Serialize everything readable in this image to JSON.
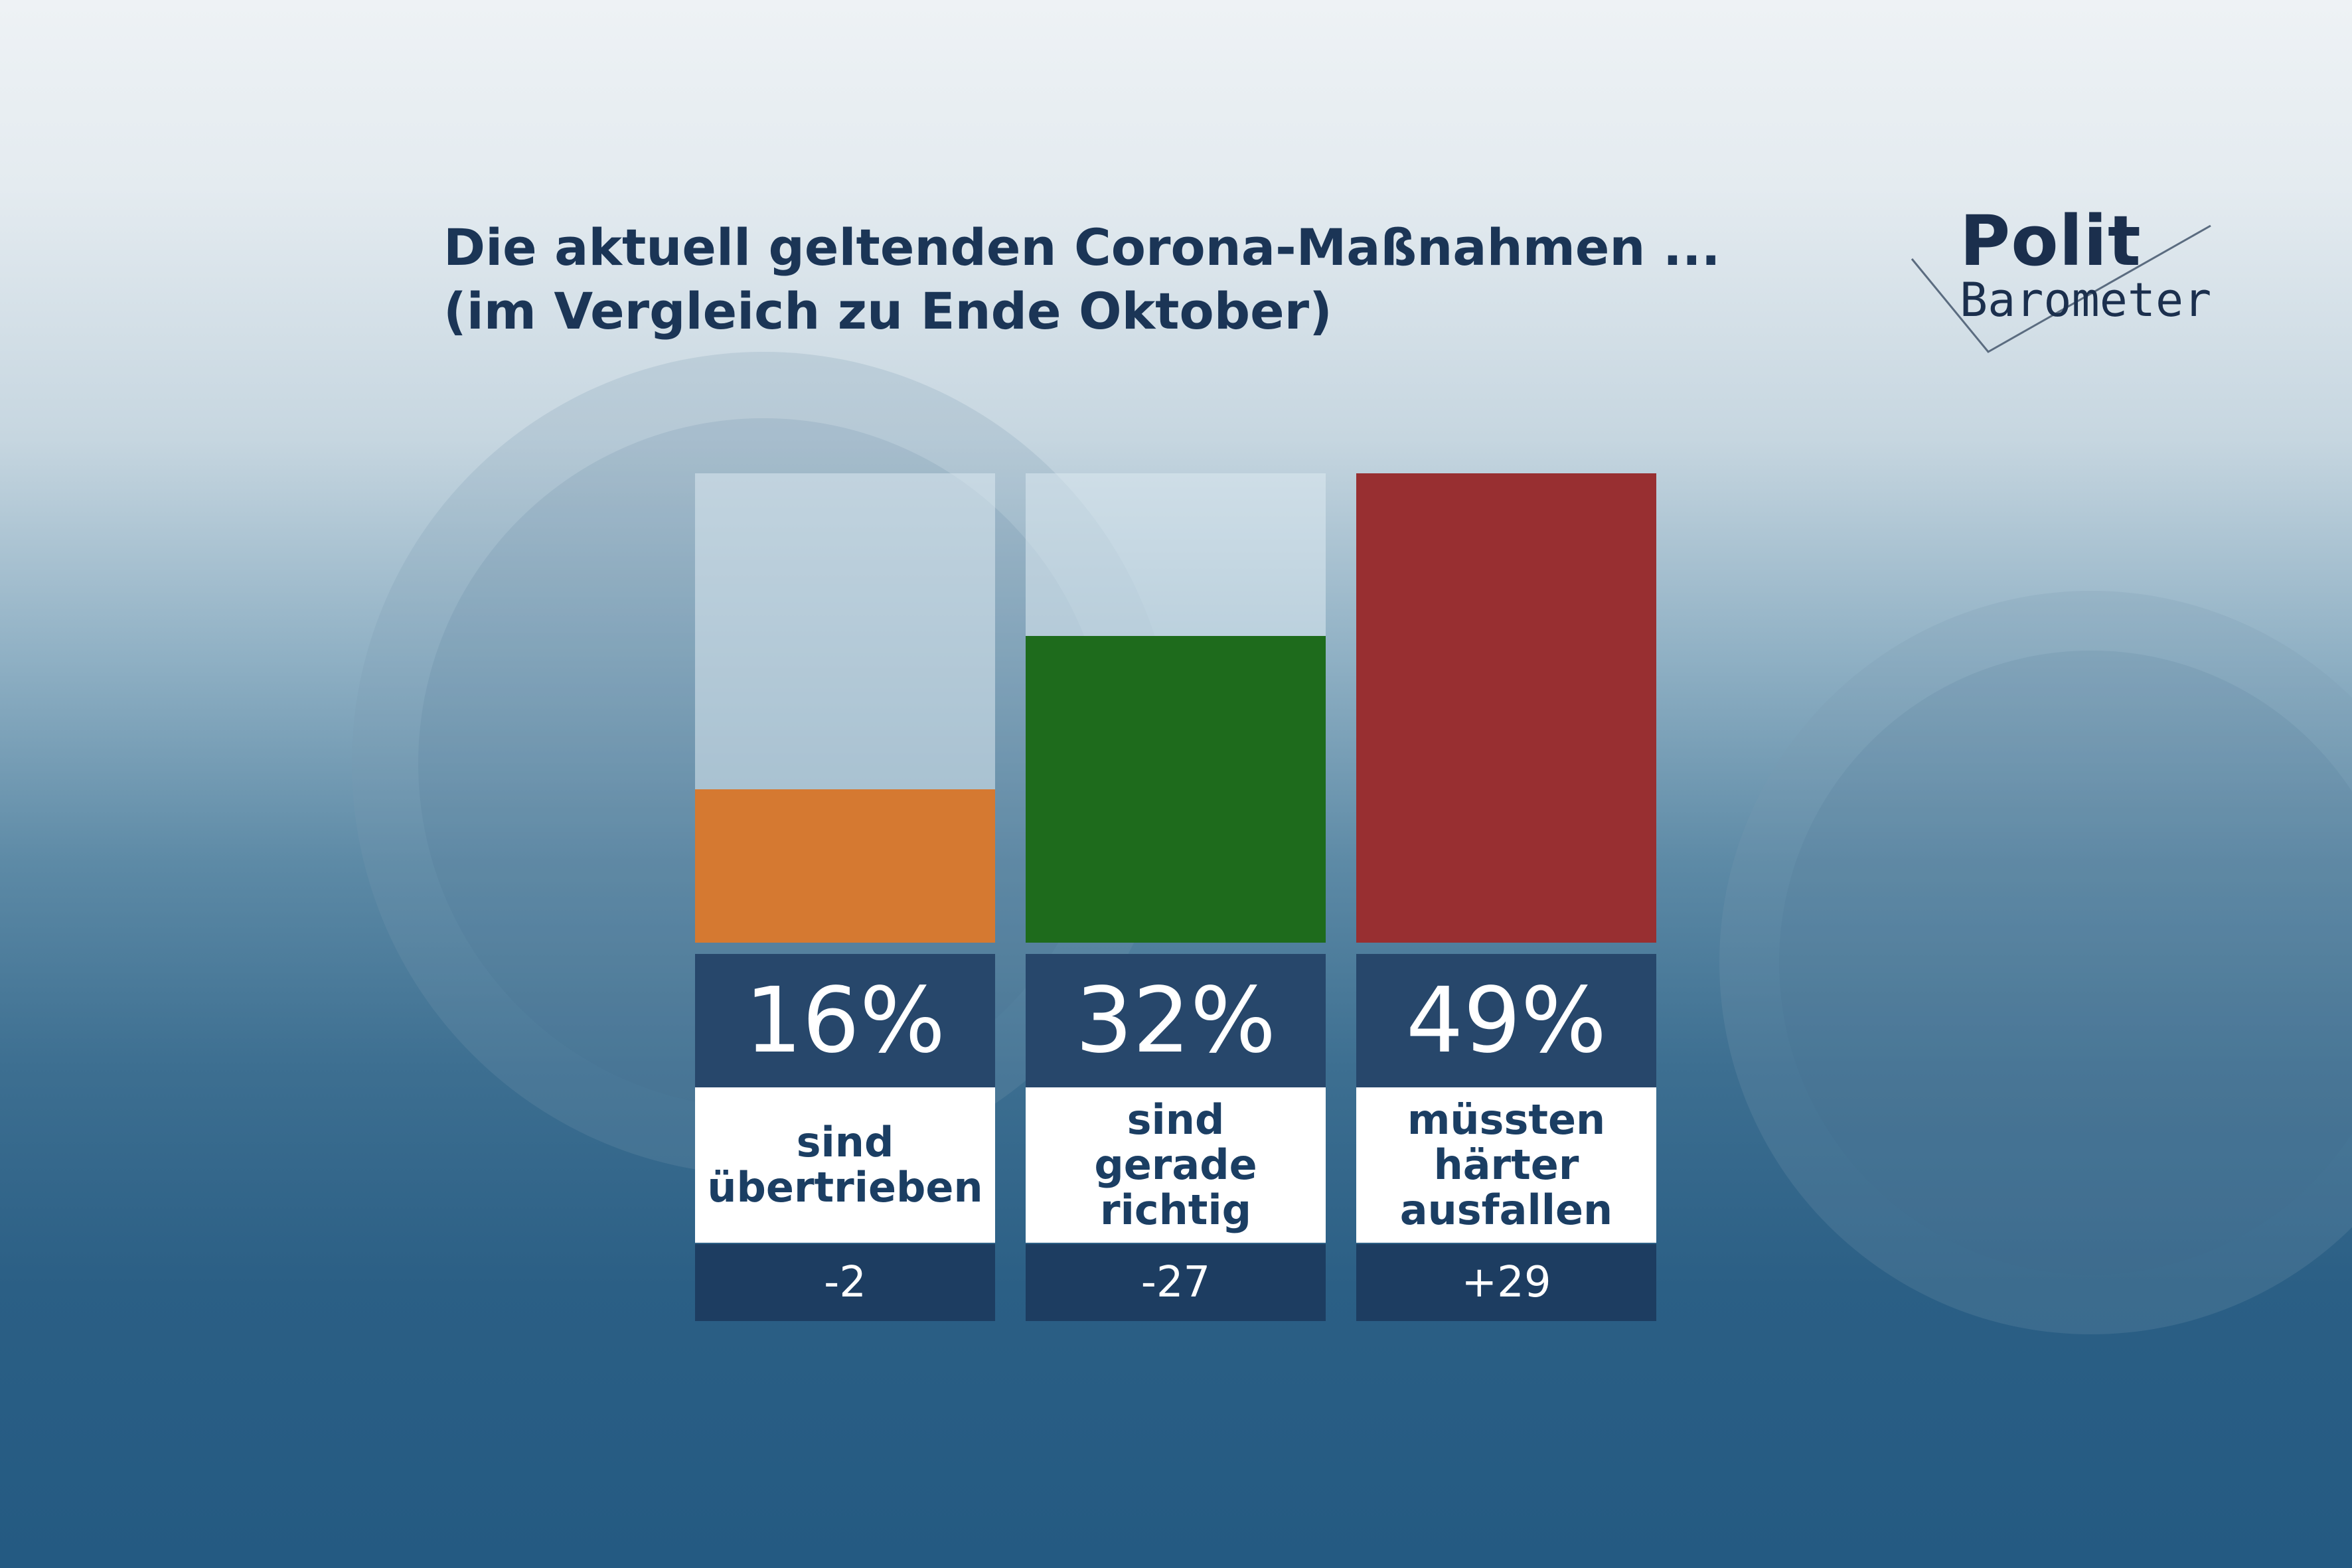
{
  "title_lines": [
    "Die aktuell geltenden Corona-Maßnahmen ...",
    "(im Vergleich zu Ende Oktober)"
  ],
  "logo": {
    "line1": "Polit",
    "line2": "Barometer"
  },
  "colors": {
    "title": "#1b3556",
    "value_box": "#27476b",
    "change_box": "#1d3d61",
    "label_text": "#1b3e63"
  },
  "chart_data": {
    "type": "bar",
    "ylim": [
      0,
      49
    ],
    "categories": [
      {
        "lines": [
          "sind",
          "übertrieben"
        ]
      },
      {
        "lines": [
          "sind",
          "gerade richtig"
        ]
      },
      {
        "lines": [
          "müssten",
          "härter",
          "ausfallen"
        ]
      }
    ],
    "series": [
      {
        "values": [
          16,
          32,
          49
        ],
        "colors": [
          "#d57931",
          "#1e6b1c",
          "#982f31"
        ]
      }
    ],
    "value_labels": [
      "16%",
      "32%",
      "49%"
    ],
    "changes": [
      "-2",
      "-27",
      "+29"
    ]
  }
}
